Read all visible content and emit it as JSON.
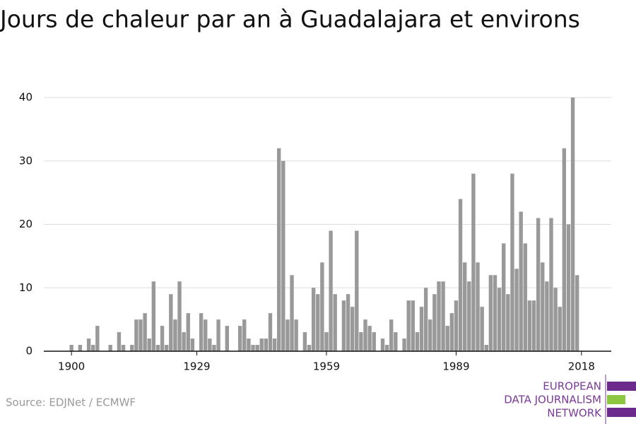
{
  "chart_data": {
    "type": "bar",
    "title": "Jours de chaleur par an à Guadalajara et environs",
    "source": "Source: EDJNet / ECMWF",
    "logo": [
      "EUROPEAN",
      "DATA JOURNALISM",
      "NETWORK"
    ],
    "color": "#999999",
    "grid": true,
    "x": [
      1900,
      1901,
      1902,
      1903,
      1904,
      1905,
      1906,
      1907,
      1908,
      1909,
      1910,
      1911,
      1912,
      1913,
      1914,
      1915,
      1916,
      1917,
      1918,
      1919,
      1920,
      1921,
      1922,
      1923,
      1924,
      1925,
      1926,
      1927,
      1928,
      1929,
      1930,
      1931,
      1932,
      1933,
      1934,
      1935,
      1936,
      1937,
      1938,
      1939,
      1940,
      1941,
      1942,
      1943,
      1944,
      1945,
      1946,
      1947,
      1948,
      1949,
      1950,
      1951,
      1952,
      1953,
      1954,
      1955,
      1956,
      1957,
      1958,
      1959,
      1960,
      1961,
      1962,
      1963,
      1964,
      1965,
      1966,
      1967,
      1968,
      1969,
      1970,
      1971,
      1972,
      1973,
      1974,
      1975,
      1976,
      1977,
      1978,
      1979,
      1980,
      1981,
      1982,
      1983,
      1984,
      1985,
      1986,
      1987,
      1988,
      1989,
      1990,
      1991,
      1992,
      1993,
      1994,
      1995,
      1996,
      1997,
      1998,
      1999,
      2000,
      2001,
      2002,
      2003,
      2004,
      2005,
      2006,
      2007,
      2008,
      2009,
      2010,
      2011,
      2012,
      2013,
      2014,
      2015,
      2016,
      2017
    ],
    "values": [
      1,
      0,
      1,
      0,
      2,
      1,
      4,
      0,
      0,
      1,
      0,
      3,
      1,
      0,
      1,
      5,
      5,
      6,
      2,
      11,
      1,
      4,
      1,
      9,
      5,
      11,
      3,
      6,
      2,
      0,
      6,
      5,
      2,
      1,
      5,
      0,
      4,
      0,
      0,
      4,
      5,
      2,
      1,
      1,
      2,
      2,
      6,
      2,
      32,
      30,
      5,
      12,
      5,
      0,
      3,
      1,
      10,
      9,
      14,
      3,
      19,
      9,
      0,
      8,
      9,
      7,
      19,
      3,
      5,
      4,
      3,
      0,
      2,
      1,
      5,
      3,
      0,
      2,
      8,
      8,
      3,
      7,
      10,
      5,
      9,
      11,
      11,
      4,
      6,
      8,
      24,
      14,
      11,
      28,
      14,
      7,
      1,
      12,
      12,
      10,
      17,
      9,
      28,
      13,
      22,
      17,
      8,
      8,
      21,
      14,
      11,
      21,
      10,
      7,
      32,
      20,
      40,
      12
    ],
    "xlim": [
      1893.6,
      2024.9
    ],
    "xticks": [
      1900,
      1929,
      1959,
      1989,
      2018
    ],
    "ylim": [
      0,
      40
    ],
    "yticks": [
      0,
      10,
      20,
      30,
      40
    ]
  }
}
